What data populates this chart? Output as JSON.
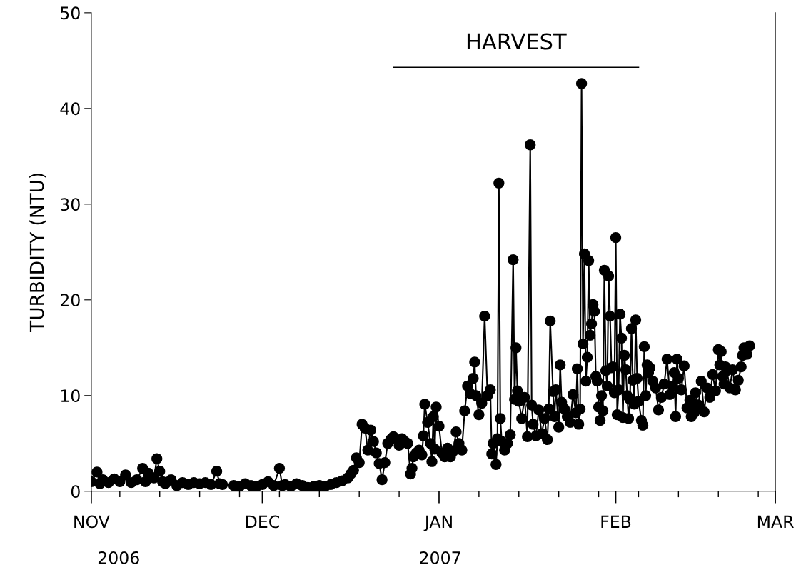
{
  "chart_data": {
    "type": "line",
    "ylabel": "TURBIDITY (NTU)",
    "marker": "circle",
    "line_style": "solid",
    "grid": false,
    "annotations": [
      "2006",
      "2007"
    ],
    "legend": false,
    "xlim": [
      "2006-11-01",
      "2007-03-01"
    ],
    "ylim": [
      0,
      50
    ],
    "yticks": [
      0,
      10,
      20,
      30,
      40,
      50
    ],
    "xticks": [
      {
        "value": "2006-11-01",
        "label": "NOV"
      },
      {
        "value": "2006-11-06",
        "label": null
      },
      {
        "value": "2006-11-13",
        "label": null
      },
      {
        "value": "2006-11-20",
        "label": null
      },
      {
        "value": "2006-11-27",
        "label": null
      },
      {
        "value": "2006-12-01",
        "label": "DEC"
      },
      {
        "value": "2006-12-04",
        "label": null
      },
      {
        "value": "2006-12-11",
        "label": null
      },
      {
        "value": "2006-12-18",
        "label": null
      },
      {
        "value": "2006-12-25",
        "label": null
      },
      {
        "value": "2007-01-01",
        "label": "JAN"
      },
      {
        "value": "2007-01-08",
        "label": null
      },
      {
        "value": "2007-01-15",
        "label": null
      },
      {
        "value": "2007-01-22",
        "label": null
      },
      {
        "value": "2007-01-29",
        "label": null
      },
      {
        "value": "2007-02-01",
        "label": "FEB"
      },
      {
        "value": "2007-02-05",
        "label": null
      },
      {
        "value": "2007-02-12",
        "label": null
      },
      {
        "value": "2007-02-19",
        "label": null
      },
      {
        "value": "2007-02-26",
        "label": null
      },
      {
        "value": "2007-03-01",
        "label": "MAR"
      }
    ],
    "series": [
      {
        "type": "line",
        "name": "HARVEST",
        "color": "#000000",
        "marker": "none",
        "x": [
          "2006-12-24",
          "2007-02-05"
        ],
        "values": [
          44.3,
          44.3
        ]
      },
      {
        "color": "#000000",
        "x": [
          "2006-11-01",
          "2006-11-02",
          "2006-11-02T12:00",
          "2006-11-03",
          "2006-11-04",
          "2006-11-05",
          "2006-11-06",
          "2006-11-07",
          "2006-11-08",
          "2006-11-09",
          "2006-11-10",
          "2006-11-10T12:00",
          "2006-11-11",
          "2006-11-12",
          "2006-11-12T12:00",
          "2006-11-13",
          "2006-11-13T12:00",
          "2006-11-14",
          "2006-11-15",
          "2006-11-16",
          "2006-11-17",
          "2006-11-18",
          "2006-11-19",
          "2006-11-20",
          "2006-11-21",
          "2006-11-22",
          "2006-11-23",
          "2006-11-23T12:00",
          "2006-11-24",
          "2006-11-26",
          "2006-11-27",
          "2006-11-28",
          "2006-11-29",
          "2006-11-30",
          "2006-12-01",
          "2006-12-02",
          "2006-12-03",
          "2006-12-04",
          "2006-12-04T12:00",
          "2006-12-05",
          "2006-12-06",
          "2006-12-07",
          "2006-12-08",
          "2006-12-09",
          "2006-12-10",
          "2006-12-11",
          "2006-12-12",
          "2006-12-13",
          "2006-12-14",
          "2006-12-15",
          "2006-12-16",
          "2006-12-16T12:00",
          "2006-12-17",
          "2006-12-17T12:00",
          "2006-12-18",
          "2006-12-18T12:00",
          "2006-12-19",
          "2006-12-19T12:00",
          "2006-12-20",
          "2006-12-20T12:00",
          "2006-12-21",
          "2006-12-21T12:00",
          "2006-12-22",
          "2006-12-22T12:00",
          "2006-12-23",
          "2006-12-23T12:00",
          "2006-12-24",
          "2006-12-25",
          "2006-12-25T12:00",
          "2006-12-26",
          "2006-12-26T12:00",
          "2006-12-27",
          "2006-12-27T06:00",
          "2006-12-27T12:00",
          "2006-12-28",
          "2006-12-28T12:00",
          "2006-12-29",
          "2006-12-29T06:00",
          "2006-12-29T12:00",
          "2006-12-30",
          "2006-12-30T12:00",
          "2006-12-30T18:00",
          "2006-12-31",
          "2006-12-31T06:00",
          "2006-12-31T12:00",
          "2007-01-01",
          "2007-01-01T12:00",
          "2007-01-02",
          "2007-01-02T12:00",
          "2007-01-03",
          "2007-01-03T12:00",
          "2007-01-04",
          "2007-01-04T12:00",
          "2007-01-05",
          "2007-01-05T12:00",
          "2007-01-06",
          "2007-01-06T12:00",
          "2007-01-07",
          "2007-01-07T06:00",
          "2007-01-07T12:00",
          "2007-01-08",
          "2007-01-08T12:00",
          "2007-01-09",
          "2007-01-09T12:00",
          "2007-01-10",
          "2007-01-10T06:00",
          "2007-01-10T12:00",
          "2007-01-11",
          "2007-01-11T06:00",
          "2007-01-11T12:00",
          "2007-01-11T18:00",
          "2007-01-12",
          "2007-01-12T12:00",
          "2007-01-13",
          "2007-01-13T12:00",
          "2007-01-14",
          "2007-01-14T06:00",
          "2007-01-14T12:00",
          "2007-01-14T18:00",
          "2007-01-15",
          "2007-01-15T12:00",
          "2007-01-16",
          "2007-01-16T12:00",
          "2007-01-17",
          "2007-01-17T06:00",
          "2007-01-17T12:00",
          "2007-01-18",
          "2007-01-18T12:00",
          "2007-01-19",
          "2007-01-19T12:00",
          "2007-01-20",
          "2007-01-20T06:00",
          "2007-01-20T12:00",
          "2007-01-21",
          "2007-01-21T06:00",
          "2007-01-21T12:00",
          "2007-01-22",
          "2007-01-22T06:00",
          "2007-01-22T12:00",
          "2007-01-23",
          "2007-01-23T12:00",
          "2007-01-24",
          "2007-01-24T12:00",
          "2007-01-25",
          "2007-01-25T06:00",
          "2007-01-25T12:00",
          "2007-01-25T18:00",
          "2007-01-26",
          "2007-01-26T06:00",
          "2007-01-26T12:00",
          "2007-01-26T18:00",
          "2007-01-27",
          "2007-01-27T06:00",
          "2007-01-27T12:00",
          "2007-01-27T18:00",
          "2007-01-28",
          "2007-01-28T06:00",
          "2007-01-28T12:00",
          "2007-01-28T18:00",
          "2007-01-29",
          "2007-01-29T06:00",
          "2007-01-29T12:00",
          "2007-01-29T18:00",
          "2007-01-30",
          "2007-01-30T06:00",
          "2007-01-30T12:00",
          "2007-01-30T18:00",
          "2007-01-31",
          "2007-01-31T06:00",
          "2007-01-31T12:00",
          "2007-01-31T18:00",
          "2007-02-01",
          "2007-02-01T06:00",
          "2007-02-01T12:00",
          "2007-02-01T18:00",
          "2007-02-02",
          "2007-02-02T06:00",
          "2007-02-02T12:00",
          "2007-02-02T18:00",
          "2007-02-03",
          "2007-02-03T06:00",
          "2007-02-03T12:00",
          "2007-02-03T18:00",
          "2007-02-04",
          "2007-02-04T06:00",
          "2007-02-04T12:00",
          "2007-02-04T18:00",
          "2007-02-05",
          "2007-02-05T12:00",
          "2007-02-05T18:00",
          "2007-02-06",
          "2007-02-06T06:00",
          "2007-02-06T12:00",
          "2007-02-06T18:00",
          "2007-02-07",
          "2007-02-07T12:00",
          "2007-02-08",
          "2007-02-08T12:00",
          "2007-02-09",
          "2007-02-09T12:00",
          "2007-02-10",
          "2007-02-10T12:00",
          "2007-02-11",
          "2007-02-11T06:00",
          "2007-02-11T12:00",
          "2007-02-11T18:00",
          "2007-02-12",
          "2007-02-12T12:00",
          "2007-02-13",
          "2007-02-13T12:00",
          "2007-02-14",
          "2007-02-14T06:00",
          "2007-02-14T12:00",
          "2007-02-14T18:00",
          "2007-02-15",
          "2007-02-15T12:00",
          "2007-02-16",
          "2007-02-16T12:00",
          "2007-02-17",
          "2007-02-17T12:00",
          "2007-02-18",
          "2007-02-18T12:00",
          "2007-02-19",
          "2007-02-19T06:00",
          "2007-02-19T12:00",
          "2007-02-19T18:00",
          "2007-02-20",
          "2007-02-20T06:00",
          "2007-02-20T12:00",
          "2007-02-21",
          "2007-02-21T12:00",
          "2007-02-22",
          "2007-02-22T12:00",
          "2007-02-23",
          "2007-02-23T06:00",
          "2007-02-23T12:00",
          "2007-02-24",
          "2007-02-24T12:00"
        ],
        "values": [
          1.0,
          2.0,
          0.8,
          1.2,
          0.9,
          1.3,
          1.0,
          1.7,
          0.9,
          1.2,
          2.4,
          1.0,
          1.9,
          1.4,
          3.4,
          2.1,
          1.0,
          0.8,
          1.2,
          0.6,
          0.9,
          0.7,
          0.9,
          0.8,
          0.9,
          0.7,
          2.1,
          0.8,
          0.7,
          0.6,
          0.5,
          0.8,
          0.6,
          0.5,
          0.7,
          1.0,
          0.6,
          2.4,
          0.6,
          0.7,
          0.5,
          0.8,
          0.6,
          0.4,
          0.5,
          0.6,
          0.5,
          0.7,
          0.9,
          1.1,
          1.4,
          1.8,
          2.2,
          3.5,
          3.0,
          7.0,
          6.6,
          4.3,
          6.4,
          5.2,
          4.0,
          2.9,
          1.2,
          3.0,
          5.0,
          5.4,
          5.7,
          4.8,
          5.5,
          5.2,
          5.0,
          1.8,
          2.4,
          3.6,
          4.0,
          4.3,
          3.8,
          5.8,
          9.1,
          7.2,
          5.0,
          3.1,
          7.8,
          4.4,
          8.8,
          6.8,
          4.0,
          3.6,
          4.5,
          3.6,
          4.2,
          6.2,
          5.0,
          4.3,
          8.4,
          11.0,
          10.2,
          11.8,
          13.5,
          10.0,
          8.0,
          9.2,
          18.3,
          10.0,
          10.6,
          3.9,
          5.0,
          2.8,
          5.5,
          32.2,
          7.6,
          5.2,
          4.3,
          5.0,
          5.9,
          24.2,
          9.6,
          15.0,
          10.5,
          9.4,
          7.6,
          9.8,
          5.7,
          36.2,
          9.0,
          7.0,
          5.8,
          8.5,
          6.0,
          7.6,
          5.4,
          8.6,
          17.8,
          10.4,
          7.8,
          10.6,
          6.7,
          13.2,
          9.3,
          8.6,
          7.8,
          7.2,
          10.1,
          8.2,
          12.8,
          7.0,
          8.6,
          42.6,
          15.4,
          24.8,
          11.5,
          14.0,
          24.1,
          16.3,
          17.5,
          19.5,
          18.8,
          12.0,
          11.5,
          8.8,
          7.4,
          10.0,
          8.4,
          23.1,
          12.6,
          11.0,
          22.5,
          18.3,
          12.9,
          13.0,
          10.3,
          26.5,
          8.0,
          10.6,
          18.5,
          16.0,
          7.7,
          14.2,
          12.7,
          10.0,
          7.6,
          9.6,
          17.0,
          11.6,
          9.1,
          17.9,
          11.8,
          9.4,
          7.4,
          6.9,
          15.1,
          10.0,
          13.2,
          12.4,
          12.9,
          11.5,
          10.8,
          8.5,
          9.8,
          11.2,
          13.8,
          10.1,
          11.0,
          12.4,
          7.8,
          13.8,
          11.8,
          10.6,
          13.1,
          8.7,
          9.5,
          7.8,
          9.2,
          8.2,
          10.3,
          9.0,
          11.5,
          8.3,
          10.8,
          9.8,
          12.2,
          10.5,
          14.8,
          13.2,
          14.6,
          12.0,
          11.2,
          13.0,
          12.6,
          10.8,
          12.7,
          10.6,
          11.6,
          13.0,
          14.2,
          15.0,
          14.3,
          15.2
        ]
      }
    ]
  }
}
